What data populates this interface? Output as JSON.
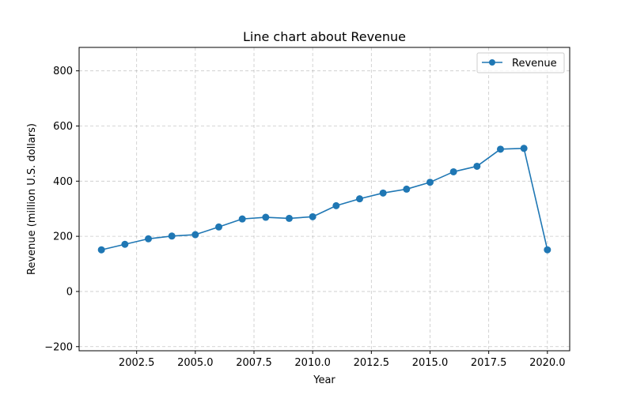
{
  "chart_data": {
    "type": "line",
    "title": "Line chart about Revenue",
    "xlabel": "Year",
    "ylabel": "Revenue (million U.S. dollars)",
    "xlim": [
      2000.05,
      2020.95
    ],
    "ylim": [
      -215,
      885
    ],
    "xticks": [
      2002.5,
      2005.0,
      2007.5,
      2010.0,
      2012.5,
      2015.0,
      2017.5,
      2020.0
    ],
    "xtick_labels": [
      "2002.5",
      "2005.0",
      "2007.5",
      "2010.0",
      "2012.5",
      "2015.0",
      "2017.5",
      "2020.0"
    ],
    "yticks": [
      -200,
      0,
      200,
      400,
      600,
      800
    ],
    "ytick_labels": [
      "−200",
      "0",
      "200",
      "400",
      "600",
      "800"
    ],
    "grid": true,
    "legend_position": "top-right",
    "series": [
      {
        "name": "Revenue",
        "color": "#1f77b4",
        "marker": "circle",
        "x": [
          2001,
          2002,
          2003,
          2004,
          2005,
          2006,
          2007,
          2008,
          2009,
          2010,
          2011,
          2012,
          2013,
          2014,
          2015,
          2016,
          2017,
          2018,
          2019,
          2020
        ],
        "y": [
          151,
          171,
          191,
          201,
          206,
          234,
          263,
          269,
          265,
          271,
          311,
          336,
          357,
          371,
          396,
          434,
          454,
          516,
          519,
          151
        ]
      }
    ]
  }
}
